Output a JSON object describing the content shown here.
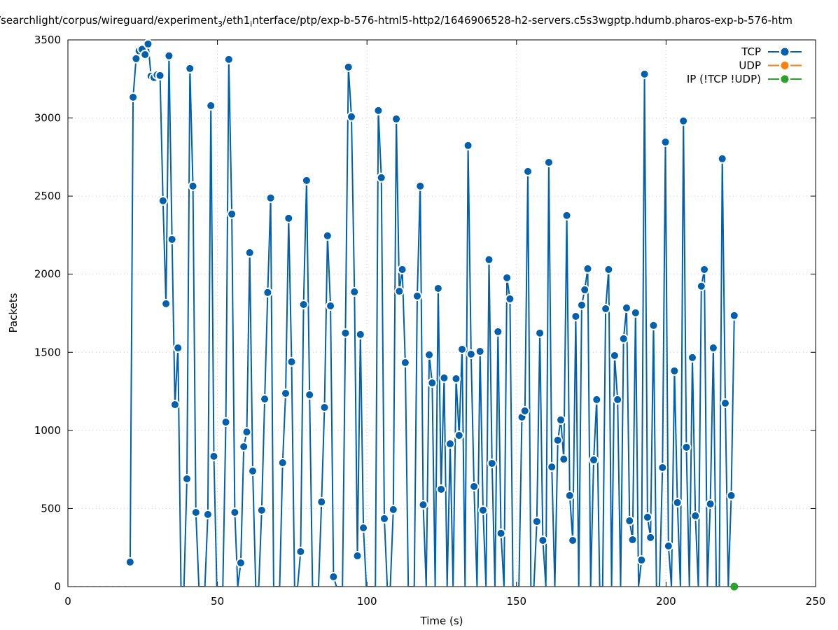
{
  "chart_data": {
    "type": "line",
    "title_parts": [
      "/searchlight/corpus/wireguard/experiment",
      "3",
      "/eth1",
      "i",
      "nterface/ptp/exp-b-576-html5-http2/1646906528-h2-servers.c5s3wgptp.hdumb.pharos-exp-b-576-htm"
    ],
    "xlabel": "Time (s)",
    "ylabel": "Packets",
    "xlim": [
      0,
      250
    ],
    "ylim": [
      0,
      3500
    ],
    "xticks": [
      0,
      50,
      100,
      150,
      200,
      250
    ],
    "yticks": [
      0,
      500,
      1000,
      1500,
      2000,
      2500,
      3000,
      3500
    ],
    "grid": true,
    "legend_position": "top-right",
    "x_offset": 0.8,
    "series": [
      {
        "name": "TCP",
        "color": "#0060ad",
        "start_second": 20,
        "values": [
          157,
          3133,
          3380,
          3430,
          3440,
          3406,
          3474,
          3268,
          3259,
          3276,
          3272,
          2470,
          1811,
          3398,
          2223,
          1165,
          1528,
          0,
          0,
          690,
          3317,
          2564,
          475,
          0,
          0,
          0,
          462,
          3079,
          834,
          0,
          0,
          0,
          1053,
          3375,
          2385,
          475,
          0,
          152,
          896,
          990,
          2138,
          740,
          0,
          0,
          489,
          1201,
          1883,
          2488,
          0,
          0,
          0,
          793,
          1237,
          2358,
          1439,
          0,
          0,
          224,
          1806,
          2600,
          1228,
          0,
          0,
          0,
          542,
          1147,
          2246,
          1797,
          63,
          0,
          0,
          0,
          1623,
          3326,
          3008,
          1887,
          197,
          1614,
          376,
          0,
          0,
          0,
          0,
          3048,
          2618,
          435,
          0,
          0,
          493,
          2994,
          1891,
          2030,
          1434,
          0,
          0,
          0,
          1860,
          2564,
          524,
          0,
          1484,
          1304,
          0,
          1909,
          623,
          1336,
          0,
          914,
          0,
          1331,
          968,
          1519,
          0,
          2824,
          1488,
          641,
          0,
          1506,
          489,
          0,
          2093,
          789,
          0,
          1632,
          341,
          0,
          1977,
          1842,
          0,
          0,
          0,
          1085,
          1125,
          2658,
          0,
          0,
          417,
          1623,
          296,
          0,
          2716,
          766,
          0,
          937,
          1067,
          816,
          2376,
          583,
          296,
          1730,
          0,
          1802,
          1900,
          2035,
          0,
          811,
          1197,
          0,
          0,
          1779,
          2030,
          0,
          1479,
          1197,
          0,
          1587,
          1784,
          421,
          300,
          1753,
          0,
          170,
          3281,
          444,
          314,
          1672,
          0,
          0,
          762,
          2846,
          260,
          0,
          1381,
          538,
          0,
          2981,
          892,
          0,
          1466,
          453,
          0,
          1923,
          2030,
          0,
          529,
          1528,
          0,
          0,
          2739,
          1174,
          0,
          583,
          1735
        ]
      },
      {
        "name": "UDP",
        "color": "#ff7f0e",
        "start_second": 0,
        "values": []
      },
      {
        "name": "IP (!TCP  !UDP)",
        "color": "#2ca02c",
        "start_second": 222,
        "values": [
          0
        ]
      }
    ]
  }
}
